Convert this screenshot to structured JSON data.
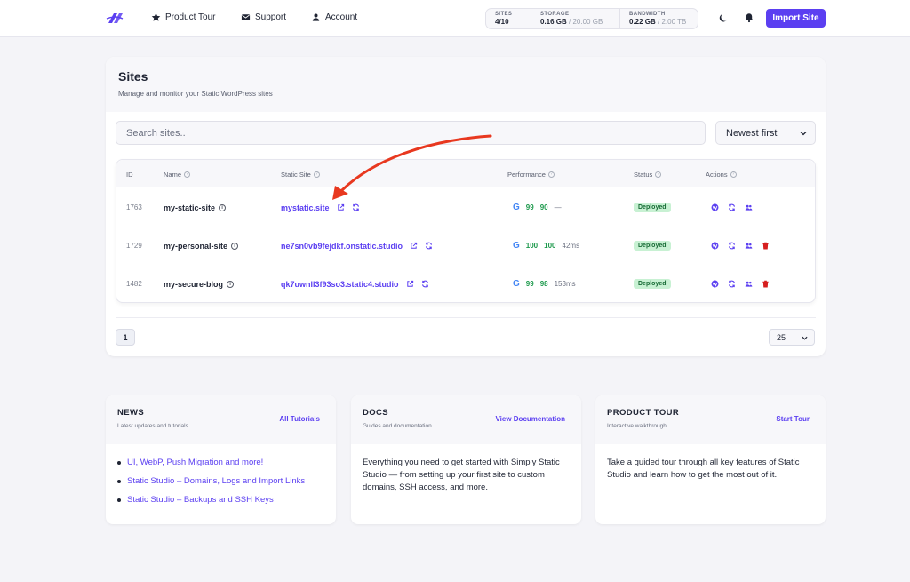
{
  "nav": {
    "product_tour": "Product Tour",
    "support": "Support",
    "account": "Account"
  },
  "stats": {
    "sites_label": "SITES",
    "sites_value": "4/10",
    "storage_label": "STORAGE",
    "storage_used": "0.16 GB",
    "storage_total": "/ 20.00 GB",
    "bandwidth_label": "BANDWIDTH",
    "bandwidth_used": "0.22 GB",
    "bandwidth_total": "/ 2.00 TB"
  },
  "import_button": "Import Site",
  "sites": {
    "title": "Sites",
    "subtitle": "Manage and monitor your Static WordPress sites",
    "search_placeholder": "Search sites..",
    "sort_value": "Newest first",
    "columns": {
      "id": "ID",
      "name": "Name",
      "static_site": "Static Site",
      "performance": "Performance",
      "status": "Status",
      "actions": "Actions"
    },
    "rows": [
      {
        "id": "1763",
        "name": "my-static-site",
        "url": "mystatic.site",
        "score1": "99",
        "score2": "90",
        "ms": "—",
        "status": "Deployed"
      },
      {
        "id": "1729",
        "name": "my-personal-site",
        "url": "ne7sn0vb9fejdkf.onstatic.studio",
        "score1": "100",
        "score2": "100",
        "ms": "42ms",
        "status": "Deployed"
      },
      {
        "id": "1482",
        "name": "my-secure-blog",
        "url": "qk7uwnll3f93so3.static4.studio",
        "score1": "99",
        "score2": "98",
        "ms": "153ms",
        "status": "Deployed"
      }
    ],
    "page": "1",
    "per_page": "25"
  },
  "news": {
    "title": "NEWS",
    "subtitle": "Latest updates and tutorials",
    "link": "All Tutorials",
    "items": [
      "UI, WebP, Push Migration and more!",
      "Static Studio – Domains, Logs and Import Links",
      "Static Studio – Backups and SSH Keys"
    ]
  },
  "docs": {
    "title": "DOCS",
    "subtitle": "Guides and documentation",
    "link": "View Documentation",
    "body": "Everything you need to get started with Simply Static Studio — from setting up your first site to custom domains, SSH access, and more."
  },
  "tour": {
    "title": "PRODUCT TOUR",
    "subtitle": "Interactive walkthrough",
    "link": "Start Tour",
    "body": "Take a guided tour through all key features of Static Studio and learn how to get the most out of it."
  },
  "colors": {
    "accent": "#5b3ff1",
    "success": "#1e9a4d",
    "annotation_arrow": "#e8381f",
    "delete": "#d61f1f"
  }
}
